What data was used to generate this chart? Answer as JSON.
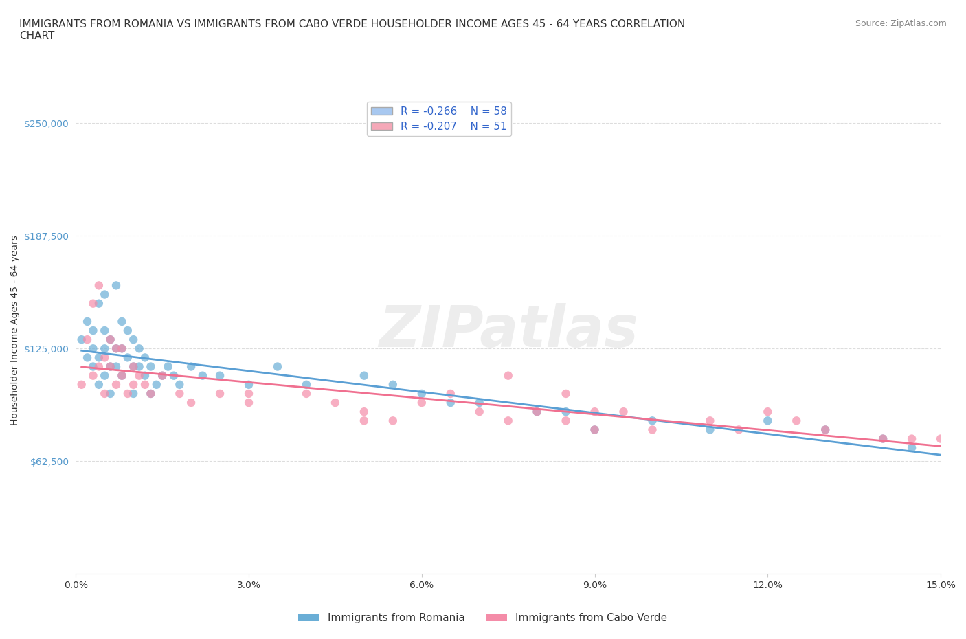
{
  "title_line1": "IMMIGRANTS FROM ROMANIA VS IMMIGRANTS FROM CABO VERDE HOUSEHOLDER INCOME AGES 45 - 64 YEARS CORRELATION",
  "title_line2": "CHART",
  "source_text": "Source: ZipAtlas.com",
  "xlabel": "",
  "ylabel": "Householder Income Ages 45 - 64 years",
  "watermark": "ZIPatlas",
  "legend1_label": "R = -0.266    N = 58",
  "legend2_label": "R = -0.207    N = 51",
  "legend1_color": "#a8c8f0",
  "legend2_color": "#f5a8b8",
  "scatter1_color": "#6aaed6",
  "scatter2_color": "#f48ca8",
  "line1_color": "#5a9fd4",
  "line2_color": "#f07090",
  "background_color": "#ffffff",
  "grid_color": "#dddddd",
  "xlim": [
    0.0,
    0.15
  ],
  "ylim": [
    0,
    270000
  ],
  "yticks": [
    62500,
    125000,
    187500,
    250000
  ],
  "ytick_labels": [
    "$62,500",
    "$125,000",
    "$187,500",
    "$250,000"
  ],
  "xticks": [
    0.0,
    0.03,
    0.06,
    0.09,
    0.12,
    0.15
  ],
  "xtick_labels": [
    "0.0%",
    "3.0%",
    "6.0%",
    "9.0%",
    "12.0%",
    "15.0%"
  ],
  "romania_x": [
    0.001,
    0.002,
    0.002,
    0.003,
    0.003,
    0.003,
    0.004,
    0.004,
    0.004,
    0.005,
    0.005,
    0.005,
    0.005,
    0.006,
    0.006,
    0.006,
    0.007,
    0.007,
    0.007,
    0.008,
    0.008,
    0.008,
    0.009,
    0.009,
    0.01,
    0.01,
    0.01,
    0.011,
    0.011,
    0.012,
    0.012,
    0.013,
    0.013,
    0.014,
    0.015,
    0.016,
    0.017,
    0.018,
    0.02,
    0.022,
    0.025,
    0.03,
    0.035,
    0.04,
    0.05,
    0.055,
    0.06,
    0.065,
    0.07,
    0.08,
    0.085,
    0.09,
    0.1,
    0.11,
    0.12,
    0.13,
    0.14,
    0.145
  ],
  "romania_y": [
    130000,
    120000,
    140000,
    115000,
    125000,
    135000,
    105000,
    120000,
    150000,
    110000,
    125000,
    135000,
    155000,
    100000,
    115000,
    130000,
    160000,
    125000,
    115000,
    110000,
    125000,
    140000,
    120000,
    135000,
    100000,
    115000,
    130000,
    115000,
    125000,
    110000,
    120000,
    100000,
    115000,
    105000,
    110000,
    115000,
    110000,
    105000,
    115000,
    110000,
    110000,
    105000,
    115000,
    105000,
    110000,
    105000,
    100000,
    95000,
    95000,
    90000,
    90000,
    80000,
    85000,
    80000,
    85000,
    80000,
    75000,
    70000
  ],
  "caboverde_x": [
    0.001,
    0.002,
    0.003,
    0.003,
    0.004,
    0.004,
    0.005,
    0.005,
    0.006,
    0.006,
    0.007,
    0.007,
    0.008,
    0.008,
    0.009,
    0.01,
    0.01,
    0.011,
    0.012,
    0.013,
    0.015,
    0.018,
    0.02,
    0.025,
    0.03,
    0.04,
    0.045,
    0.05,
    0.055,
    0.06,
    0.07,
    0.075,
    0.08,
    0.085,
    0.09,
    0.095,
    0.1,
    0.11,
    0.115,
    0.12,
    0.125,
    0.13,
    0.14,
    0.145,
    0.15,
    0.03,
    0.05,
    0.065,
    0.075,
    0.085,
    0.09
  ],
  "caboverde_y": [
    105000,
    130000,
    110000,
    150000,
    115000,
    160000,
    100000,
    120000,
    115000,
    130000,
    105000,
    125000,
    110000,
    125000,
    100000,
    105000,
    115000,
    110000,
    105000,
    100000,
    110000,
    100000,
    95000,
    100000,
    95000,
    100000,
    95000,
    90000,
    85000,
    95000,
    90000,
    85000,
    90000,
    85000,
    80000,
    90000,
    80000,
    85000,
    80000,
    90000,
    85000,
    80000,
    75000,
    75000,
    75000,
    100000,
    85000,
    100000,
    110000,
    100000,
    90000
  ],
  "romania_R": -0.266,
  "romania_N": 58,
  "caboverde_R": -0.207,
  "caboverde_N": 51,
  "title_fontsize": 11,
  "axis_label_fontsize": 10,
  "tick_fontsize": 10,
  "legend_fontsize": 11
}
